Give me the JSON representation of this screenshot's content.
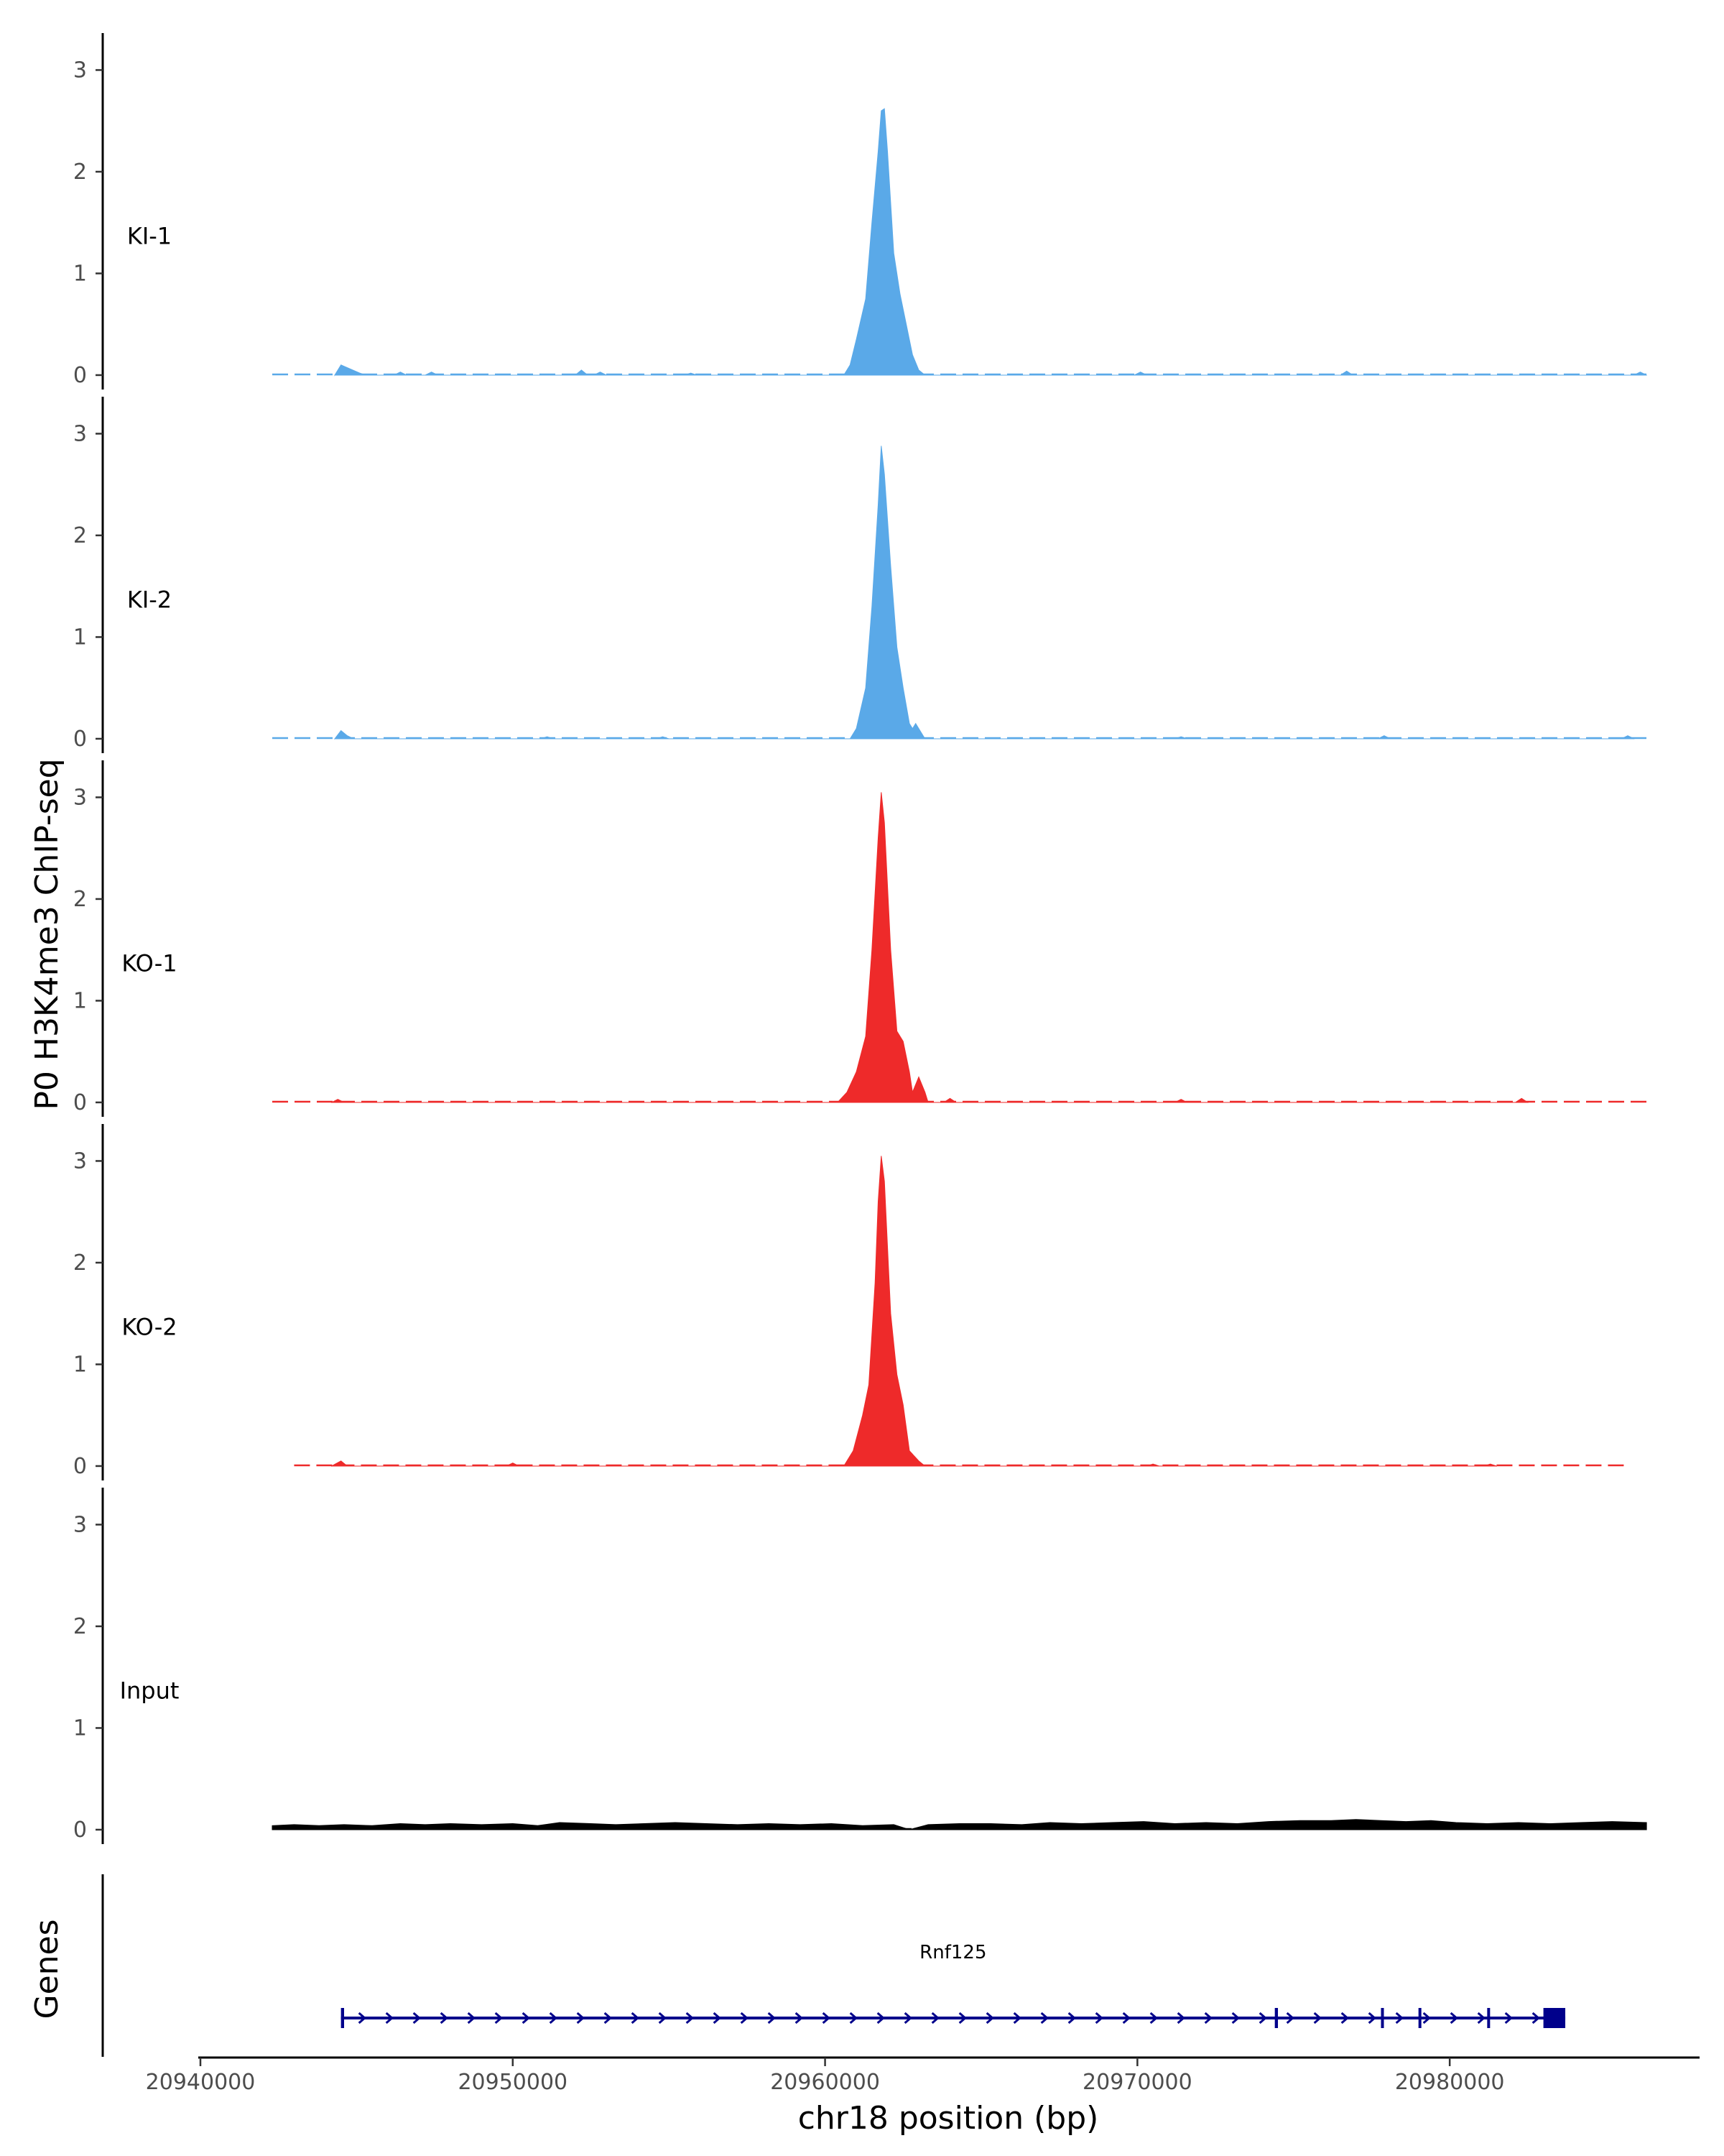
{
  "chart_data": {
    "type": "area",
    "title": "",
    "xlabel": "chr18 position (bp)",
    "ylabel": "P0 H3K4me3 ChIP-seq",
    "genes_label": "Genes",
    "xlim": [
      20940000,
      20988000
    ],
    "ylim": [
      0,
      3.3
    ],
    "x_ticks": [
      20940000,
      20950000,
      20960000,
      20970000,
      20980000
    ],
    "y_ticks": [
      0,
      1,
      2,
      3
    ],
    "grid": false,
    "legend": "none",
    "tracks": [
      {
        "name": "KI-1",
        "color": "#5aa9e8",
        "coverage_start": 20942300,
        "coverage_end": 20986300,
        "points": [
          [
            20944300,
            0
          ],
          [
            20944500,
            0.1
          ],
          [
            20944800,
            0.06
          ],
          [
            20945100,
            0.02
          ],
          [
            20945300,
            0
          ],
          [
            20946200,
            0
          ],
          [
            20946400,
            0.03
          ],
          [
            20946600,
            0
          ],
          [
            20947200,
            0
          ],
          [
            20947400,
            0.03
          ],
          [
            20947600,
            0
          ],
          [
            20952000,
            0
          ],
          [
            20952200,
            0.05
          ],
          [
            20952400,
            0
          ],
          [
            20952600,
            0
          ],
          [
            20952800,
            0.03
          ],
          [
            20953000,
            0
          ],
          [
            20955500,
            0
          ],
          [
            20955700,
            0.02
          ],
          [
            20955900,
            0
          ],
          [
            20960600,
            0
          ],
          [
            20960800,
            0.1
          ],
          [
            20961000,
            0.35
          ],
          [
            20961300,
            0.75
          ],
          [
            20961500,
            1.5
          ],
          [
            20961700,
            2.2
          ],
          [
            20961800,
            2.6
          ],
          [
            20961900,
            2.62
          ],
          [
            20962000,
            2.2
          ],
          [
            20962200,
            1.2
          ],
          [
            20962400,
            0.8
          ],
          [
            20962600,
            0.5
          ],
          [
            20962800,
            0.2
          ],
          [
            20963000,
            0.05
          ],
          [
            20963200,
            0
          ],
          [
            20969900,
            0
          ],
          [
            20970100,
            0.03
          ],
          [
            20970300,
            0
          ],
          [
            20976500,
            0
          ],
          [
            20976700,
            0.04
          ],
          [
            20976900,
            0
          ],
          [
            20985900,
            0
          ],
          [
            20986100,
            0.03
          ],
          [
            20986300,
            0
          ]
        ]
      },
      {
        "name": "KI-2",
        "color": "#5aa9e8",
        "coverage_start": 20942300,
        "coverage_end": 20986300,
        "points": [
          [
            20944300,
            0
          ],
          [
            20944500,
            0.08
          ],
          [
            20944700,
            0.03
          ],
          [
            20944900,
            0
          ],
          [
            20950900,
            0
          ],
          [
            20951100,
            0.02
          ],
          [
            20951300,
            0
          ],
          [
            20954600,
            0
          ],
          [
            20954800,
            0.02
          ],
          [
            20955000,
            0
          ],
          [
            20960800,
            0
          ],
          [
            20961000,
            0.1
          ],
          [
            20961300,
            0.5
          ],
          [
            20961500,
            1.3
          ],
          [
            20961700,
            2.3
          ],
          [
            20961800,
            2.88
          ],
          [
            20961900,
            2.6
          ],
          [
            20962100,
            1.7
          ],
          [
            20962300,
            0.9
          ],
          [
            20962500,
            0.5
          ],
          [
            20962700,
            0.15
          ],
          [
            20962800,
            0.1
          ],
          [
            20962900,
            0.15
          ],
          [
            20963000,
            0.1
          ],
          [
            20963200,
            0
          ],
          [
            20971200,
            0
          ],
          [
            20971400,
            0.02
          ],
          [
            20971600,
            0
          ],
          [
            20977700,
            0
          ],
          [
            20977900,
            0.03
          ],
          [
            20978100,
            0
          ],
          [
            20985500,
            0
          ],
          [
            20985700,
            0.03
          ],
          [
            20985900,
            0
          ]
        ]
      },
      {
        "name": "KO-1",
        "color": "#ee2a2a",
        "coverage_start": 20942300,
        "coverage_end": 20986300,
        "points": [
          [
            20944200,
            0
          ],
          [
            20944400,
            0.03
          ],
          [
            20944600,
            0
          ],
          [
            20960400,
            0
          ],
          [
            20960700,
            0.1
          ],
          [
            20961000,
            0.3
          ],
          [
            20961300,
            0.65
          ],
          [
            20961500,
            1.5
          ],
          [
            20961700,
            2.6
          ],
          [
            20961800,
            3.05
          ],
          [
            20961900,
            2.75
          ],
          [
            20962100,
            1.5
          ],
          [
            20962300,
            0.7
          ],
          [
            20962500,
            0.6
          ],
          [
            20962700,
            0.3
          ],
          [
            20962800,
            0.1
          ],
          [
            20963000,
            0.25
          ],
          [
            20963200,
            0.1
          ],
          [
            20963300,
            0
          ],
          [
            20963800,
            0
          ],
          [
            20964000,
            0.04
          ],
          [
            20964200,
            0
          ],
          [
            20971200,
            0
          ],
          [
            20971400,
            0.03
          ],
          [
            20971600,
            0
          ],
          [
            20982100,
            0
          ],
          [
            20982300,
            0.04
          ],
          [
            20982500,
            0
          ]
        ]
      },
      {
        "name": "KO-2",
        "color": "#ee2a2a",
        "coverage_start": 20943000,
        "coverage_end": 20985600,
        "points": [
          [
            20944200,
            0
          ],
          [
            20944500,
            0.05
          ],
          [
            20944700,
            0
          ],
          [
            20949800,
            0
          ],
          [
            20950000,
            0.03
          ],
          [
            20950200,
            0
          ],
          [
            20960600,
            0
          ],
          [
            20960900,
            0.15
          ],
          [
            20961200,
            0.5
          ],
          [
            20961400,
            0.8
          ],
          [
            20961600,
            1.8
          ],
          [
            20961700,
            2.6
          ],
          [
            20961800,
            3.05
          ],
          [
            20961900,
            2.8
          ],
          [
            20962100,
            1.5
          ],
          [
            20962300,
            0.9
          ],
          [
            20962500,
            0.6
          ],
          [
            20962700,
            0.15
          ],
          [
            20963000,
            0.05
          ],
          [
            20963200,
            0
          ],
          [
            20970300,
            0
          ],
          [
            20970500,
            0.02
          ],
          [
            20970700,
            0
          ],
          [
            20981100,
            0
          ],
          [
            20981300,
            0.02
          ],
          [
            20981500,
            0
          ]
        ]
      },
      {
        "name": "Input",
        "color": "#000000",
        "coverage_start": 20942300,
        "coverage_end": 20986300,
        "points": [
          [
            20942300,
            0.04
          ],
          [
            20943000,
            0.05
          ],
          [
            20943800,
            0.04
          ],
          [
            20944600,
            0.05
          ],
          [
            20945500,
            0.04
          ],
          [
            20946400,
            0.06
          ],
          [
            20947200,
            0.05
          ],
          [
            20948000,
            0.06
          ],
          [
            20949000,
            0.05
          ],
          [
            20950000,
            0.06
          ],
          [
            20950800,
            0.04
          ],
          [
            20951500,
            0.07
          ],
          [
            20952500,
            0.06
          ],
          [
            20953300,
            0.05
          ],
          [
            20954200,
            0.06
          ],
          [
            20955200,
            0.07
          ],
          [
            20956200,
            0.06
          ],
          [
            20957200,
            0.05
          ],
          [
            20958200,
            0.06
          ],
          [
            20959200,
            0.05
          ],
          [
            20960200,
            0.06
          ],
          [
            20961200,
            0.04
          ],
          [
            20962200,
            0.05
          ],
          [
            20962700,
            0
          ],
          [
            20963300,
            0.05
          ],
          [
            20964300,
            0.06
          ],
          [
            20965300,
            0.06
          ],
          [
            20966300,
            0.05
          ],
          [
            20967200,
            0.07
          ],
          [
            20968200,
            0.06
          ],
          [
            20969200,
            0.07
          ],
          [
            20970200,
            0.08
          ],
          [
            20971200,
            0.06
          ],
          [
            20972200,
            0.07
          ],
          [
            20973200,
            0.06
          ],
          [
            20974200,
            0.08
          ],
          [
            20975200,
            0.09
          ],
          [
            20976200,
            0.09
          ],
          [
            20977000,
            0.1
          ],
          [
            20977800,
            0.09
          ],
          [
            20978600,
            0.08
          ],
          [
            20979400,
            0.09
          ],
          [
            20980200,
            0.07
          ],
          [
            20981200,
            0.06
          ],
          [
            20982200,
            0.07
          ],
          [
            20983200,
            0.06
          ],
          [
            20984200,
            0.07
          ],
          [
            20985200,
            0.08
          ],
          [
            20986300,
            0.07
          ]
        ]
      }
    ],
    "gene_track": {
      "name": "Rnf125",
      "color": "#00008b",
      "start": 20944500,
      "end": 20983700,
      "strand": "+",
      "exons": [
        [
          20944500,
          20944600
        ],
        [
          20974400,
          20974500
        ],
        [
          20977800,
          20977850
        ],
        [
          20979000,
          20979050
        ],
        [
          20981200,
          20981250
        ],
        [
          20983000,
          20983700
        ]
      ]
    }
  }
}
